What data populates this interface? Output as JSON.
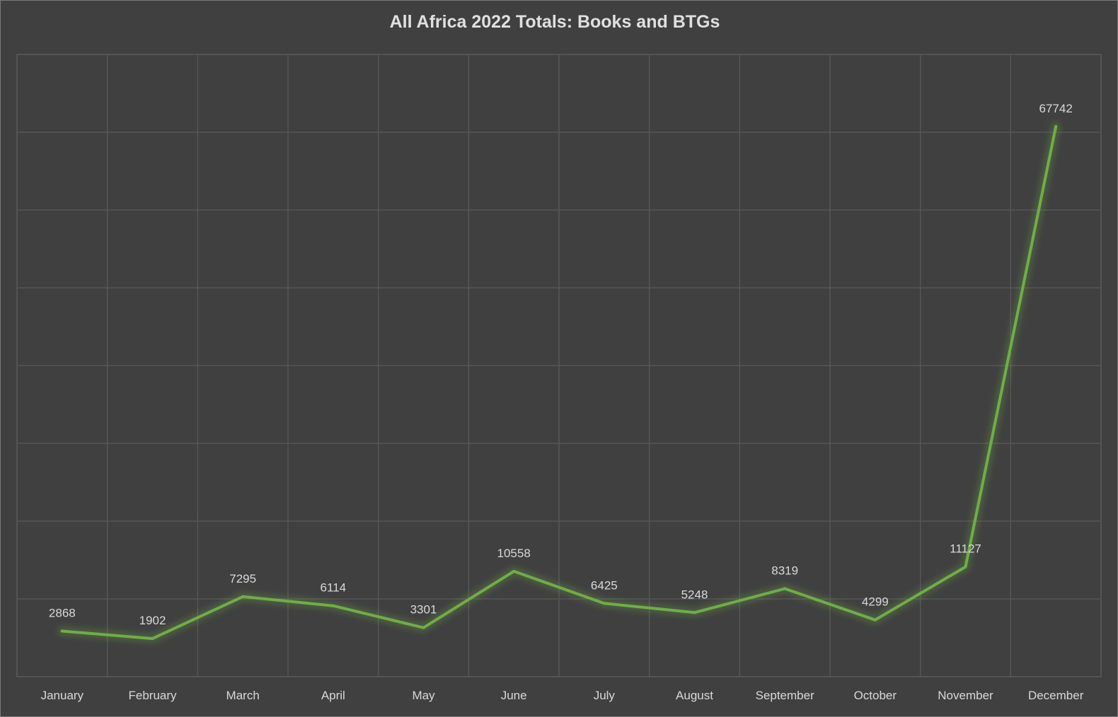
{
  "chart_data": {
    "type": "line",
    "title": "All Africa 2022 Totals: Books and BTGs",
    "categories": [
      "January",
      "February",
      "March",
      "April",
      "May",
      "June",
      "July",
      "August",
      "September",
      "October",
      "November",
      "December"
    ],
    "series": [
      {
        "values": [
          2868,
          1902,
          7295,
          6114,
          3301,
          10558,
          6425,
          5248,
          8319,
          4299,
          11127,
          67742
        ]
      }
    ],
    "ylim": [
      -3000,
      77000
    ],
    "grid": true,
    "legend": "none",
    "xlabel": "",
    "ylabel": ""
  },
  "colors": {
    "background": "#404040",
    "series": "#70ad47",
    "text": "#d9d9d9"
  }
}
